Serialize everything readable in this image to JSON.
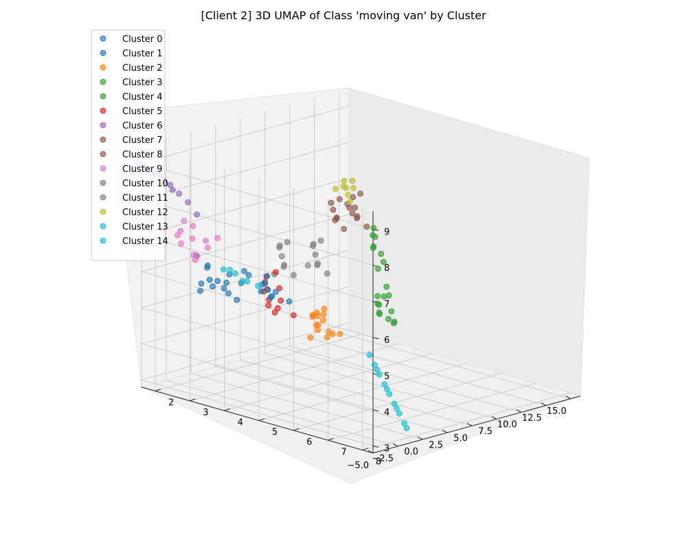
{
  "chart_data": {
    "type": "scatter",
    "projection": "3d",
    "title": "[Client 2] 3D UMAP of Class 'moving van' by Cluster",
    "xlabel": "",
    "ylabel": "",
    "zlabel": "",
    "x_ticks": [
      "15.0",
      "12.5",
      "10.0",
      "7.5",
      "5.0",
      "2.5",
      "0.0",
      "−2.5",
      "−5.0"
    ],
    "y_ticks": [
      "2",
      "3",
      "4",
      "5",
      "6",
      "7",
      "8"
    ],
    "z_ticks": [
      "3",
      "4",
      "5",
      "6",
      "7",
      "8",
      "9"
    ],
    "xlim": [
      -5,
      16
    ],
    "ylim": [
      1.6,
      8.3
    ],
    "zlim": [
      2.8,
      9.5
    ],
    "grid": true,
    "legend_position": "top-left",
    "series": [
      {
        "name": "Cluster 0",
        "color": "#1f77b4",
        "points": [
          [
            0.8,
            3.6,
            5.6
          ],
          [
            1.2,
            3.4,
            5.7
          ],
          [
            0.5,
            3.8,
            5.5
          ],
          [
            1.5,
            3.2,
            5.4
          ],
          [
            0.2,
            4.0,
            5.7
          ]
        ]
      },
      {
        "name": "Cluster 1",
        "color": "#1f77b4",
        "points": [
          [
            -1.0,
            3.0,
            6.0
          ],
          [
            -1.5,
            2.8,
            5.8
          ],
          [
            -2.0,
            3.2,
            5.9
          ],
          [
            -0.8,
            3.5,
            6.1
          ],
          [
            -1.8,
            2.6,
            6.2
          ],
          [
            -2.5,
            3.4,
            5.7
          ],
          [
            -1.2,
            2.9,
            5.6
          ],
          [
            -3.0,
            3.0,
            6.0
          ],
          [
            -0.5,
            3.8,
            5.9
          ],
          [
            -2.2,
            2.5,
            5.5
          ],
          [
            -1.6,
            3.6,
            6.3
          ],
          [
            -2.8,
            2.7,
            5.8
          ],
          [
            -1.0,
            4.2,
            5.7
          ],
          [
            -0.2,
            4.5,
            5.6
          ],
          [
            -3.4,
            3.2,
            5.9
          ],
          [
            -1.9,
            2.3,
            6.4
          ],
          [
            -2.6,
            3.8,
            6.1
          ],
          [
            -0.7,
            4.0,
            6.2
          ],
          [
            -1.3,
            3.3,
            5.4
          ],
          [
            -2.9,
            2.9,
            6.3
          ]
        ]
      },
      {
        "name": "Cluster 2",
        "color": "#ff7f0e",
        "points": [
          [
            1.0,
            5.0,
            5.0
          ],
          [
            1.5,
            4.8,
            4.9
          ],
          [
            0.8,
            5.2,
            5.2
          ],
          [
            1.8,
            4.6,
            5.1
          ],
          [
            0.5,
            5.4,
            4.8
          ],
          [
            1.2,
            4.9,
            5.3
          ],
          [
            2.0,
            4.7,
            4.7
          ],
          [
            0.3,
            5.5,
            5.0
          ],
          [
            1.6,
            5.0,
            5.4
          ],
          [
            0.9,
            4.8,
            4.6
          ],
          [
            2.2,
            4.5,
            5.0
          ],
          [
            1.4,
            5.3,
            4.8
          ],
          [
            0.6,
            5.1,
            5.3
          ],
          [
            1.9,
            4.9,
            5.2
          ],
          [
            1.1,
            5.6,
            4.9
          ]
        ]
      },
      {
        "name": "Cluster 3",
        "color": "#2ca02c",
        "points": [
          [
            12.0,
            3.5,
            6.2
          ],
          [
            11.5,
            3.6,
            6.0
          ],
          [
            12.5,
            3.3,
            5.8
          ],
          [
            11.8,
            3.8,
            5.6
          ],
          [
            12.2,
            3.4,
            6.4
          ],
          [
            11.2,
            3.9,
            5.9
          ],
          [
            12.8,
            3.2,
            6.1
          ],
          [
            11.6,
            3.7,
            5.4
          ]
        ]
      },
      {
        "name": "Cluster 4",
        "color": "#2ca02c",
        "points": [
          [
            10.5,
            4.0,
            4.6
          ],
          [
            10.0,
            4.2,
            4.4
          ],
          [
            11.0,
            3.9,
            4.5
          ],
          [
            10.2,
            4.4,
            4.3
          ],
          [
            10.8,
            4.1,
            4.8
          ],
          [
            9.6,
            4.3,
            4.5
          ],
          [
            11.2,
            3.8,
            4.7
          ],
          [
            10.4,
            4.5,
            4.2
          ],
          [
            9.8,
            4.6,
            4.6
          ],
          [
            10.6,
            4.3,
            4.9
          ],
          [
            9.4,
            4.8,
            4.4
          ],
          [
            11.4,
            4.0,
            5.0
          ]
        ]
      },
      {
        "name": "Cluster 5",
        "color": "#d62728",
        "points": [
          [
            3.5,
            2.8,
            5.2
          ],
          [
            3.0,
            3.0,
            5.0
          ],
          [
            4.0,
            2.6,
            5.3
          ],
          [
            3.2,
            3.2,
            4.8
          ],
          [
            3.8,
            2.7,
            5.5
          ],
          [
            2.8,
            3.4,
            5.1
          ],
          [
            4.2,
            2.5,
            5.0
          ],
          [
            3.6,
            3.0,
            4.6
          ],
          [
            3.0,
            3.3,
            5.4
          ],
          [
            4.4,
            2.8,
            5.6
          ],
          [
            3.4,
            3.6,
            4.7
          ],
          [
            2.6,
            3.1,
            4.9
          ]
        ]
      },
      {
        "name": "Cluster 6",
        "color": "#9467bd",
        "points": [
          [
            -5.0,
            1.5,
            9.0
          ],
          [
            -4.8,
            1.6,
            8.9
          ],
          [
            -4.6,
            1.8,
            8.8
          ],
          [
            -4.4,
            2.0,
            8.7
          ],
          [
            -4.2,
            2.2,
            8.5
          ],
          [
            -4.0,
            2.4,
            8.3
          ],
          [
            -3.8,
            2.6,
            8.1
          ],
          [
            -3.6,
            2.8,
            7.8
          ],
          [
            -4.9,
            1.7,
            8.85
          ],
          [
            -4.7,
            1.9,
            8.75
          ],
          [
            -4.5,
            2.1,
            8.6
          ],
          [
            -4.3,
            2.3,
            8.4
          ]
        ]
      },
      {
        "name": "Cluster 7",
        "color": "#8c564b",
        "points": [
          [
            11.0,
            3.2,
            7.0
          ],
          [
            10.5,
            3.4,
            6.8
          ],
          [
            11.5,
            3.0,
            7.2
          ],
          [
            10.8,
            3.6,
            6.6
          ],
          [
            11.2,
            3.3,
            7.4
          ],
          [
            10.2,
            3.5,
            6.9
          ],
          [
            11.8,
            2.9,
            6.7
          ],
          [
            10.6,
            3.1,
            7.1
          ]
        ]
      },
      {
        "name": "Cluster 8",
        "color": "#8c564b",
        "points": [
          [
            9.5,
            3.0,
            7.0
          ],
          [
            9.0,
            3.2,
            6.8
          ],
          [
            10.0,
            2.8,
            7.1
          ],
          [
            9.2,
            3.4,
            6.6
          ],
          [
            9.8,
            3.1,
            7.3
          ],
          [
            8.8,
            3.3,
            6.9
          ],
          [
            10.2,
            2.9,
            6.7
          ],
          [
            9.4,
            3.5,
            7.2
          ]
        ]
      },
      {
        "name": "Cluster 9",
        "color": "#e377c2",
        "points": [
          [
            -3.0,
            2.5,
            7.0
          ],
          [
            -3.5,
            2.3,
            7.2
          ],
          [
            -2.5,
            2.8,
            6.8
          ],
          [
            -3.2,
            2.6,
            6.6
          ],
          [
            -2.8,
            2.2,
            7.4
          ],
          [
            -3.8,
            2.4,
            6.9
          ],
          [
            -2.2,
            3.0,
            7.1
          ],
          [
            -3.4,
            2.7,
            6.5
          ],
          [
            -2.6,
            2.4,
            7.3
          ],
          [
            -3.9,
            2.9,
            6.7
          ],
          [
            -2.0,
            2.6,
            6.9
          ],
          [
            -3.1,
            2.1,
            7.0
          ]
        ]
      },
      {
        "name": "Cluster 10",
        "color": "#7f7f7f",
        "points": [
          [
            7.0,
            3.2,
            6.0
          ],
          [
            6.5,
            3.4,
            5.8
          ],
          [
            7.5,
            3.0,
            6.2
          ],
          [
            6.8,
            3.6,
            5.6
          ],
          [
            7.2,
            3.3,
            6.4
          ],
          [
            6.2,
            3.5,
            5.9
          ],
          [
            7.8,
            2.9,
            6.1
          ],
          [
            6.6,
            3.1,
            5.7
          ]
        ]
      },
      {
        "name": "Cluster 11",
        "color": "#7f7f7f",
        "points": [
          [
            5.0,
            2.8,
            6.0
          ],
          [
            4.5,
            3.0,
            5.8
          ],
          [
            5.5,
            2.6,
            6.2
          ],
          [
            4.8,
            3.2,
            5.6
          ],
          [
            5.2,
            2.9,
            6.4
          ],
          [
            4.2,
            3.1,
            5.9
          ],
          [
            5.8,
            2.5,
            6.1
          ],
          [
            4.6,
            2.7,
            5.5
          ]
        ]
      },
      {
        "name": "Cluster 12",
        "color": "#bcbd22",
        "points": [
          [
            11.5,
            2.8,
            7.4
          ],
          [
            11.0,
            3.0,
            7.3
          ],
          [
            12.0,
            2.6,
            7.5
          ],
          [
            10.5,
            3.2,
            7.2
          ],
          [
            11.8,
            2.9,
            7.6
          ],
          [
            10.8,
            2.7,
            7.4
          ],
          [
            12.3,
            2.5,
            7.3
          ],
          [
            11.2,
            3.1,
            7.5
          ]
        ]
      },
      {
        "name": "Cluster 13",
        "color": "#17becf",
        "points": [
          [
            -2.5,
            3.6,
            6.3
          ],
          [
            -2.0,
            3.8,
            6.1
          ],
          [
            -3.0,
            3.4,
            6.4
          ],
          [
            -1.6,
            4.0,
            6.0
          ],
          [
            -2.8,
            3.9,
            6.2
          ],
          [
            -3.4,
            3.7,
            6.5
          ]
        ]
      },
      {
        "name": "Cluster 14",
        "color": "#17becf",
        "points": [
          [
            2.0,
            7.2,
            2.8
          ],
          [
            2.2,
            7.0,
            3.0
          ],
          [
            2.4,
            6.8,
            3.2
          ],
          [
            2.6,
            6.6,
            3.4
          ],
          [
            2.8,
            6.4,
            3.6
          ],
          [
            3.0,
            6.2,
            3.8
          ],
          [
            3.2,
            6.0,
            4.0
          ],
          [
            3.4,
            5.8,
            4.2
          ],
          [
            1.9,
            7.3,
            2.7
          ],
          [
            2.3,
            6.9,
            3.1
          ],
          [
            2.7,
            6.5,
            3.5
          ],
          [
            3.1,
            6.1,
            3.9
          ]
        ]
      }
    ]
  }
}
